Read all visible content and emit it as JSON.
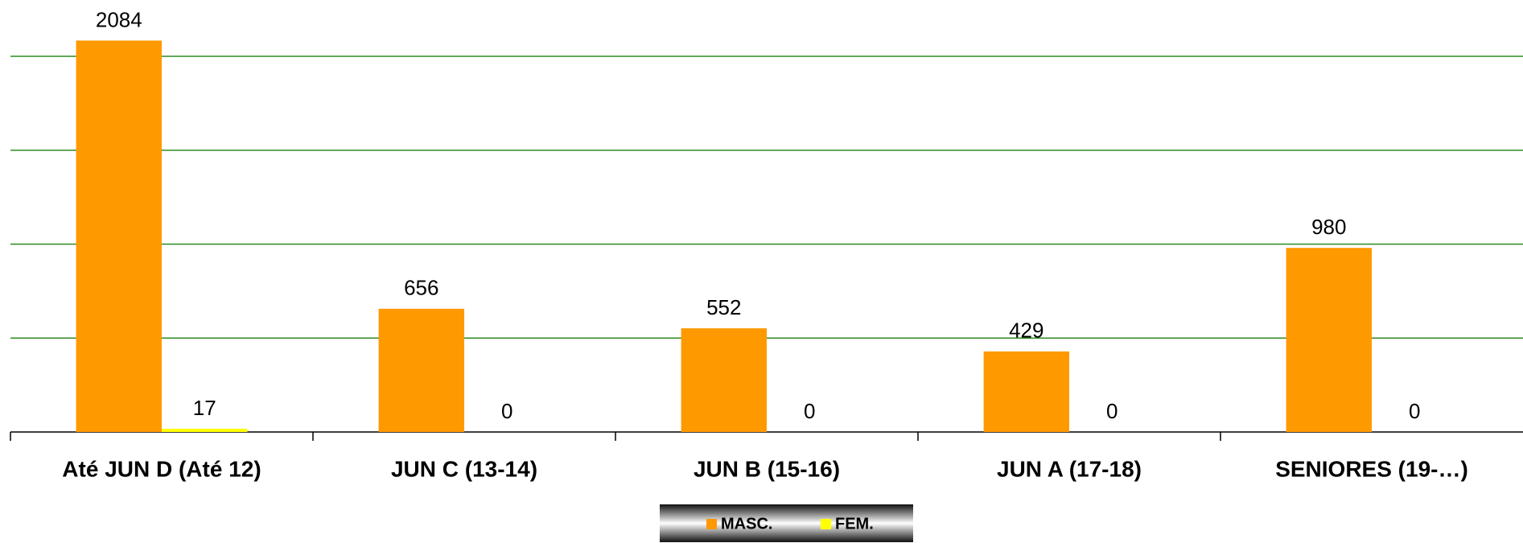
{
  "chart_data": {
    "type": "bar",
    "categories": [
      "Até JUN D (Até 12)",
      "JUN C (13-14)",
      "JUN B (15-16)",
      "JUN A (17-18)",
      "SENIORES (19-…)"
    ],
    "series": [
      {
        "name": "MASC.",
        "color": "#ff9900",
        "values": [
          2084,
          656,
          552,
          429,
          980
        ]
      },
      {
        "name": "FEM.",
        "color": "#ffff00",
        "values": [
          17,
          0,
          0,
          0,
          0
        ]
      }
    ],
    "ylim": [
      0,
      2300
    ],
    "yticks": [
      0,
      500,
      1000,
      1500,
      2000
    ],
    "grid": true,
    "grid_color": "#2e8b22",
    "legend": "bottom"
  }
}
